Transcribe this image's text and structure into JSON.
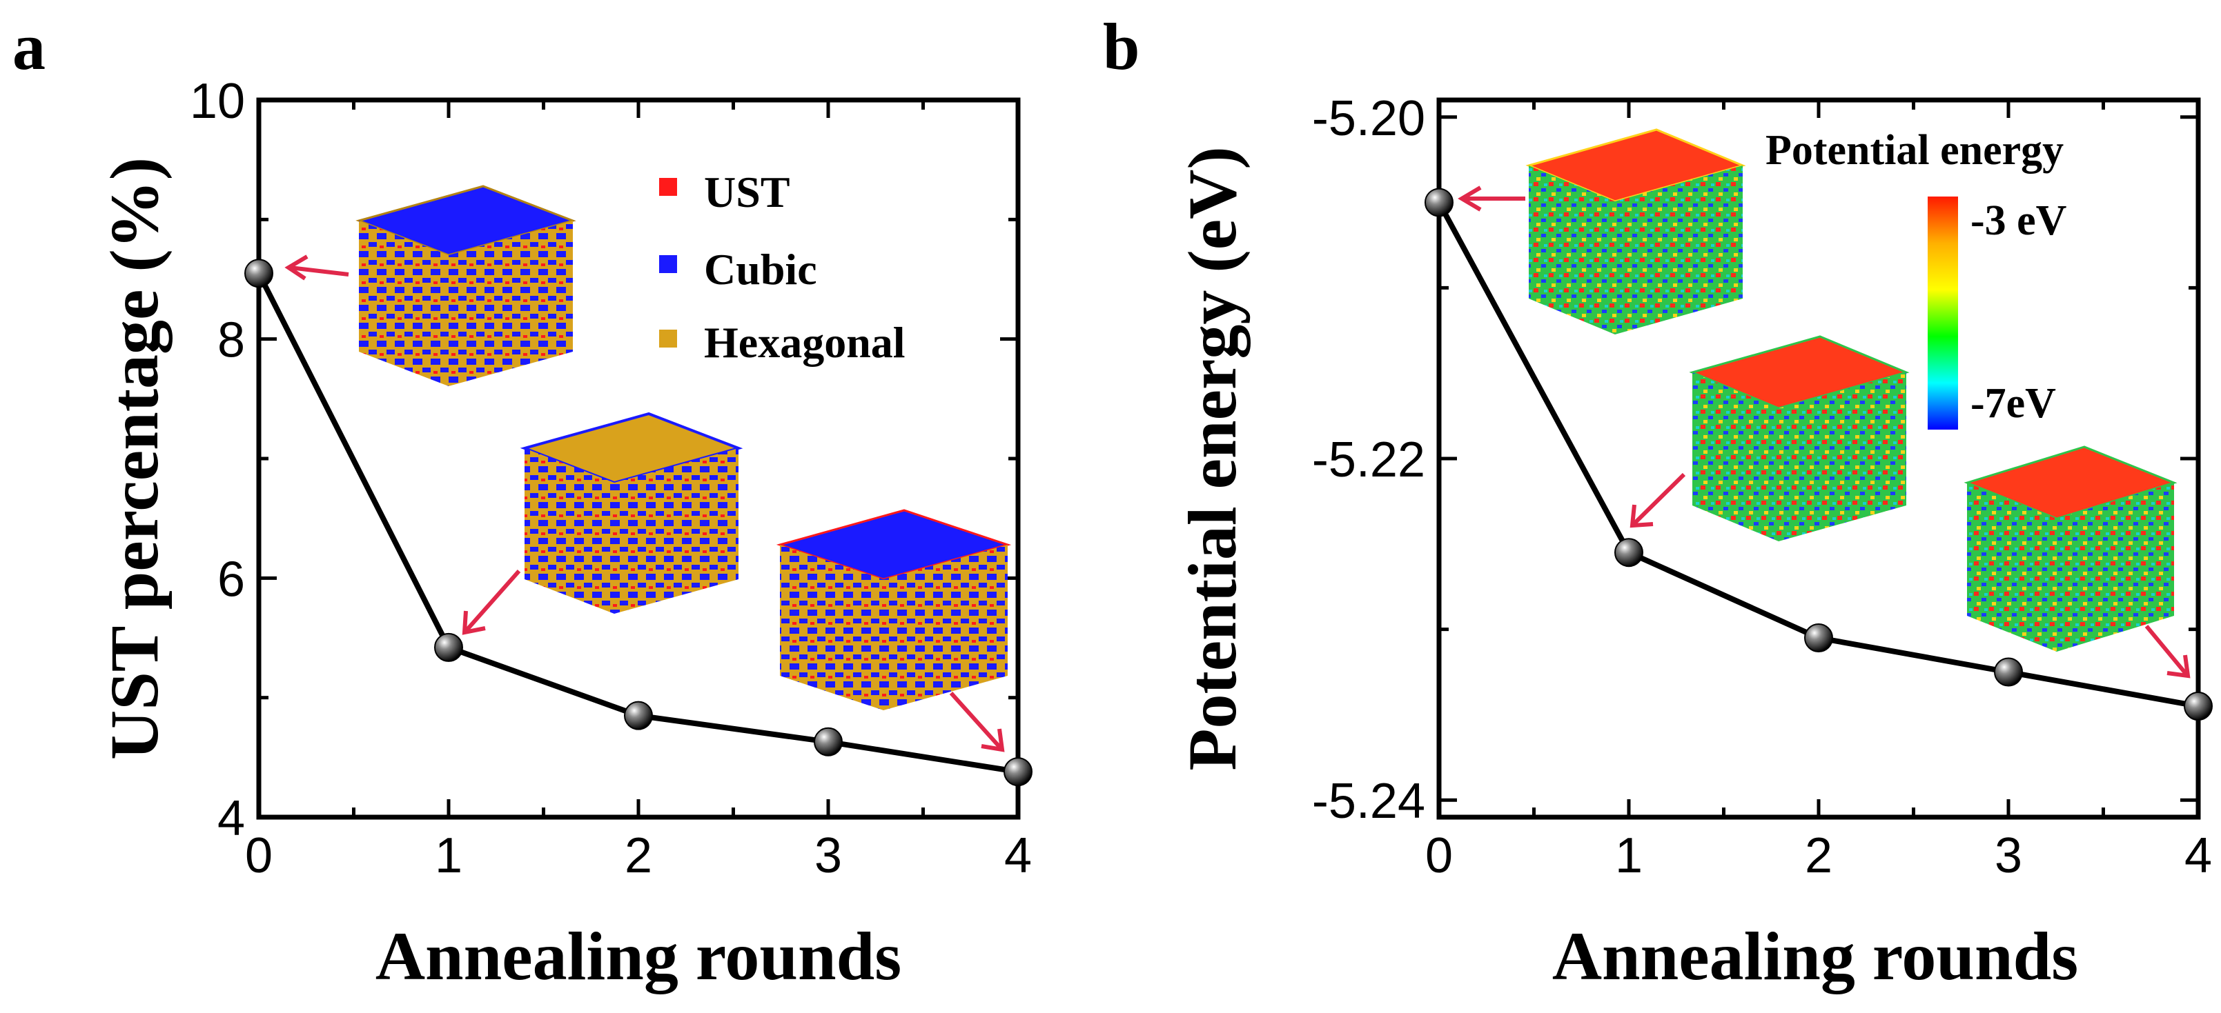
{
  "panels": [
    {
      "label": "a"
    },
    {
      "label": "b"
    }
  ],
  "legend": {
    "items": [
      {
        "label": "UST",
        "color": "#ff1a1a"
      },
      {
        "label": "Cubic",
        "color": "#1a1aff"
      },
      {
        "label": "Hexagonal",
        "color": "#d9a21c"
      }
    ]
  },
  "colorbar": {
    "title": "Potential energy",
    "max_label": "-3 eV",
    "min_label": "-7eV",
    "gradient": [
      "#ff1a00",
      "#ffb000",
      "#ffff00",
      "#00ff00",
      "#00ffff",
      "#0000ff"
    ]
  },
  "colors": {
    "arrow": "#e0284a",
    "line": "#000000",
    "marker": "#111111"
  },
  "chart_data": [
    {
      "type": "line",
      "title": "",
      "xlabel": "Annealing rounds",
      "ylabel": "UST percentage (%)",
      "x": [
        0,
        1,
        2,
        3,
        4
      ],
      "series": [
        {
          "name": "UST percentage",
          "values": [
            8.55,
            5.42,
            4.85,
            4.63,
            4.38
          ]
        }
      ],
      "xlim": [
        0,
        4
      ],
      "ylim": [
        4,
        10
      ],
      "xticks": [
        0,
        1,
        2,
        3,
        4
      ],
      "yticks": [
        4,
        6,
        8,
        10
      ],
      "xtick_labels": [
        "0",
        "1",
        "2",
        "3",
        "4"
      ],
      "ytick_labels": [
        "4",
        "6",
        "8",
        "10"
      ]
    },
    {
      "type": "line",
      "title": "",
      "xlabel": "Annealing rounds",
      "ylabel": "Potential energy (eV)",
      "x": [
        0,
        1,
        2,
        3,
        4
      ],
      "series": [
        {
          "name": "Potential energy",
          "values": [
            -5.205,
            -5.2255,
            -5.2305,
            -5.2325,
            -5.2345
          ]
        }
      ],
      "xlim": [
        0,
        4
      ],
      "ylim": [
        -5.241,
        -5.199
      ],
      "xticks": [
        0,
        1,
        2,
        3,
        4
      ],
      "yticks": [
        -5.2,
        -5.22,
        -5.24
      ],
      "xtick_labels": [
        "0",
        "1",
        "2",
        "3",
        "4"
      ],
      "ytick_labels": [
        "-5.20",
        "-5.22",
        "-5.24"
      ]
    }
  ]
}
